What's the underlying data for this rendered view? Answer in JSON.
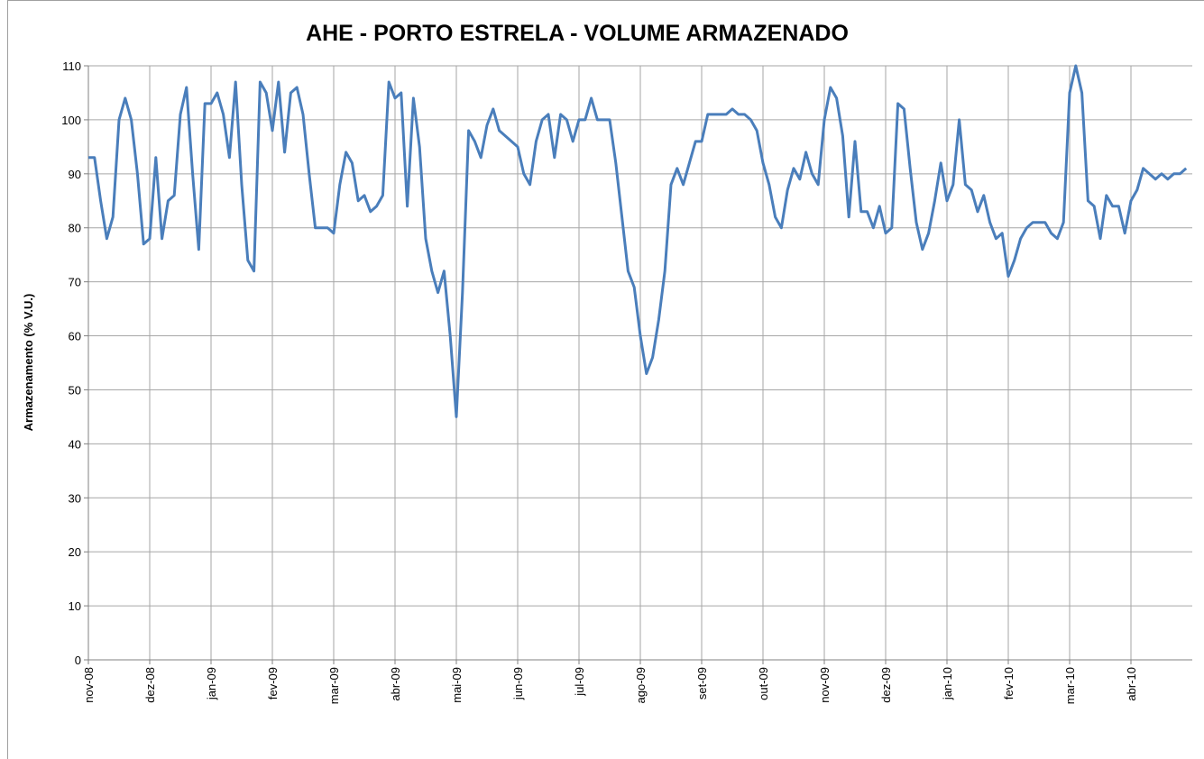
{
  "chart_data": {
    "type": "line",
    "title": "AHE - PORTO ESTRELA - VOLUME ARMAZENADO",
    "y_label": "Armazenamento (% V.U.)",
    "categories": [
      "nov-08",
      null,
      null,
      null,
      null,
      null,
      null,
      null,
      null,
      null,
      "dez-08",
      null,
      null,
      null,
      null,
      null,
      null,
      null,
      null,
      null,
      "jan-09",
      null,
      null,
      null,
      null,
      null,
      null,
      null,
      null,
      null,
      "fev-09",
      null,
      null,
      null,
      null,
      null,
      null,
      null,
      null,
      null,
      "mar-09",
      null,
      null,
      null,
      null,
      null,
      null,
      null,
      null,
      null,
      "abr-09",
      null,
      null,
      null,
      null,
      null,
      null,
      null,
      null,
      null,
      "mai-09",
      null,
      null,
      null,
      null,
      null,
      null,
      null,
      null,
      null,
      "jun-09",
      null,
      null,
      null,
      null,
      null,
      null,
      null,
      null,
      null,
      "jul-09",
      null,
      null,
      null,
      null,
      null,
      null,
      null,
      null,
      null,
      "ago-09",
      null,
      null,
      null,
      null,
      null,
      null,
      null,
      null,
      null,
      "set-09",
      null,
      null,
      null,
      null,
      null,
      null,
      null,
      null,
      null,
      "out-09",
      null,
      null,
      null,
      null,
      null,
      null,
      null,
      null,
      null,
      "nov-09",
      null,
      null,
      null,
      null,
      null,
      null,
      null,
      null,
      null,
      "dez-09",
      null,
      null,
      null,
      null,
      null,
      null,
      null,
      null,
      null,
      "jan-10",
      null,
      null,
      null,
      null,
      null,
      null,
      null,
      null,
      null,
      "fev-10",
      null,
      null,
      null,
      null,
      null,
      null,
      null,
      null,
      null,
      "mar-10",
      null,
      null,
      null,
      null,
      null,
      null,
      null,
      null,
      null,
      "abr-10",
      null,
      null,
      null,
      null,
      null,
      null,
      null,
      null,
      null
    ],
    "series": [
      {
        "color": "#4a7ebb",
        "values": [
          93,
          93,
          85,
          78,
          82,
          100,
          104,
          100,
          90,
          77,
          78,
          93,
          78,
          85,
          86,
          101,
          106,
          90,
          76,
          103,
          103,
          105,
          101,
          93,
          107,
          88,
          74,
          72,
          107,
          105,
          98,
          107,
          94,
          105,
          106,
          101,
          90,
          80,
          80,
          80,
          79,
          88,
          94,
          92,
          85,
          86,
          83,
          84,
          86,
          107,
          104,
          105,
          84,
          104,
          95,
          78,
          72,
          68,
          72,
          60,
          45,
          68,
          98,
          96,
          93,
          99,
          102,
          98,
          97,
          96,
          95,
          90,
          88,
          96,
          100,
          101,
          93,
          101,
          100,
          96,
          100,
          100,
          104,
          100,
          100,
          100,
          92,
          82,
          72,
          69,
          60,
          53,
          56,
          63,
          72,
          88,
          91,
          88,
          92,
          96,
          96,
          101,
          101,
          101,
          101,
          102,
          101,
          101,
          100,
          98,
          92,
          88,
          82,
          80,
          87,
          91,
          89,
          94,
          90,
          88,
          100,
          106,
          104,
          97,
          82,
          96,
          83,
          83,
          80,
          84,
          79,
          80,
          103,
          102,
          91,
          81,
          76,
          79,
          85,
          92,
          85,
          88,
          100,
          88,
          87,
          83,
          86,
          81,
          78,
          79,
          71,
          74,
          78,
          80,
          81,
          81,
          81,
          79,
          78,
          81,
          105,
          110,
          105,
          85,
          84,
          78,
          86,
          84,
          84,
          79,
          85,
          87,
          91,
          90,
          89,
          90,
          89,
          90,
          90,
          91
        ]
      }
    ],
    "ylim": [
      0,
      110
    ],
    "yticks": [
      0,
      10,
      20,
      30,
      40,
      50,
      60,
      70,
      80,
      90,
      100,
      110
    ],
    "grid": true
  }
}
